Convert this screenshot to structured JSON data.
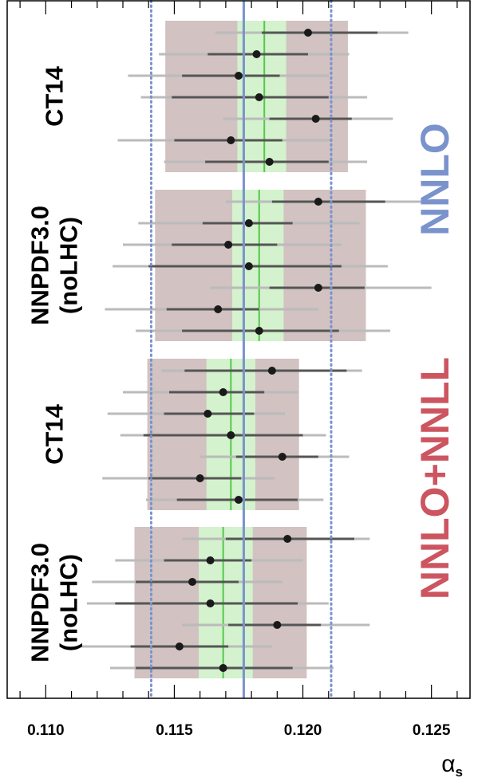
{
  "chart_data": {
    "type": "scatter",
    "orientation": "horizontal-error-bars",
    "xlim": [
      0.1085,
      0.1265
    ],
    "x_ticks": [
      {
        "value": 0.11,
        "label": "0.110"
      },
      {
        "value": 0.115,
        "label": "0.115"
      },
      {
        "value": 0.12,
        "label": "0.120"
      },
      {
        "value": 0.125,
        "label": "0.125"
      }
    ],
    "xlabel_main": "α",
    "xlabel_sub": "s",
    "grid": false,
    "reference": {
      "central": 0.1177,
      "low": 0.1141,
      "high": 0.1211,
      "color": "#7a93cc"
    },
    "order_labels": [
      {
        "text": "NNLO",
        "color": "#7a93cc"
      },
      {
        "text": "NNLO+NNLL",
        "color": "#cc5560"
      }
    ],
    "colors": {
      "band_outer": "#d2c2c2",
      "band_inner": "#d3f2cd",
      "average_line": "#55c84c",
      "point": "#1a1a1a",
      "err_stat": "#555555",
      "err_tot": "#bbbbbb"
    },
    "groups": [
      {
        "label_lines": [
          "CT14"
        ],
        "band_outer": [
          0.11465,
          0.12175
        ],
        "band_inner": [
          0.11745,
          0.11935
        ],
        "average": 0.1185,
        "points": [
          {
            "x": 0.1202,
            "stat": [
              0.1184,
              0.1229
            ],
            "tot": [
              0.1166,
              0.1241
            ]
          },
          {
            "x": 0.1182,
            "stat": [
              0.1163,
              0.1202
            ],
            "tot": [
              0.1144,
              0.1218
            ]
          },
          {
            "x": 0.1175,
            "stat": [
              0.1153,
              0.1191
            ],
            "tot": [
              0.1132,
              0.121
            ]
          },
          {
            "x": 0.1183,
            "stat": [
              0.1149,
              0.121
            ],
            "tot": [
              0.1137,
              0.1225
            ]
          },
          {
            "x": 0.1205,
            "stat": [
              0.1187,
              0.1219
            ],
            "tot": [
              0.1169,
              0.1235
            ]
          },
          {
            "x": 0.1172,
            "stat": [
              0.115,
              0.1192
            ],
            "tot": [
              0.1128,
              0.1211
            ]
          },
          {
            "x": 0.1187,
            "stat": [
              0.1162,
              0.121
            ],
            "tot": [
              0.1146,
              0.1225
            ]
          }
        ]
      },
      {
        "label_lines": [
          "NNPDF3.0",
          "(noLHC)"
        ],
        "band_outer": [
          0.11425,
          0.12245
        ],
        "band_inner": [
          0.11725,
          0.11925
        ],
        "average": 0.1183,
        "points": [
          {
            "x": 0.1206,
            "stat": [
              0.1188,
              0.1232
            ],
            "tot": [
              0.117,
              0.125
            ]
          },
          {
            "x": 0.1179,
            "stat": [
              0.1161,
              0.1196
            ],
            "tot": [
              0.1136,
              0.1222
            ]
          },
          {
            "x": 0.1171,
            "stat": [
              0.1149,
              0.119
            ],
            "tot": [
              0.113,
              0.1215
            ]
          },
          {
            "x": 0.1179,
            "stat": [
              0.114,
              0.1215
            ],
            "tot": [
              0.1126,
              0.1233
            ]
          },
          {
            "x": 0.1206,
            "stat": [
              0.1187,
              0.1224
            ],
            "tot": [
              0.1164,
              0.125
            ]
          },
          {
            "x": 0.1167,
            "stat": [
              0.1147,
              0.1183
            ],
            "tot": [
              0.1123,
              0.1206
            ]
          },
          {
            "x": 0.1183,
            "stat": [
              0.1153,
              0.1214
            ],
            "tot": [
              0.1135,
              0.1234
            ]
          }
        ]
      },
      {
        "label_lines": [
          "CT14"
        ],
        "band_outer": [
          0.11395,
          0.11985
        ],
        "band_inner": [
          0.11625,
          0.11815
        ],
        "average": 0.1172,
        "points": [
          {
            "x": 0.1188,
            "stat": [
              0.1154,
              0.1217
            ],
            "tot": [
              0.1145,
              0.1223
            ]
          },
          {
            "x": 0.1169,
            "stat": [
              0.1148,
              0.1185
            ],
            "tot": [
              0.113,
              0.1198
            ]
          },
          {
            "x": 0.1163,
            "stat": [
              0.1146,
              0.1181
            ],
            "tot": [
              0.1124,
              0.1193
            ]
          },
          {
            "x": 0.1172,
            "stat": [
              0.1138,
              0.12
            ],
            "tot": [
              0.1129,
              0.1209
            ]
          },
          {
            "x": 0.1192,
            "stat": [
              0.1174,
              0.1206
            ],
            "tot": [
              0.116,
              0.1218
            ]
          },
          {
            "x": 0.116,
            "stat": [
              0.114,
              0.1176
            ],
            "tot": [
              0.1122,
              0.1189
            ]
          },
          {
            "x": 0.1175,
            "stat": [
              0.1151,
              0.1198
            ],
            "tot": [
              0.1139,
              0.1208
            ]
          }
        ]
      },
      {
        "label_lines": [
          "NNPDF3.0",
          "(noLHC)"
        ],
        "band_outer": [
          0.11345,
          0.12015
        ],
        "band_inner": [
          0.11595,
          0.11805
        ],
        "average": 0.1169,
        "points": [
          {
            "x": 0.1194,
            "stat": [
              0.117,
              0.122
            ],
            "tot": [
              0.1153,
              0.1226
            ]
          },
          {
            "x": 0.1164,
            "stat": [
              0.1146,
              0.118
            ],
            "tot": [
              0.1127,
              0.12
            ]
          },
          {
            "x": 0.1157,
            "stat": [
              0.1135,
              0.1175
            ],
            "tot": [
              0.1118,
              0.1192
            ]
          },
          {
            "x": 0.1164,
            "stat": [
              0.1127,
              0.1198
            ],
            "tot": [
              0.1116,
              0.121
            ]
          },
          {
            "x": 0.119,
            "stat": [
              0.1171,
              0.1207
            ],
            "tot": [
              0.1153,
              0.1226
            ]
          },
          {
            "x": 0.1152,
            "stat": [
              0.1133,
              0.1171
            ],
            "tot": [
              0.1114,
              0.1188
            ]
          },
          {
            "x": 0.1169,
            "stat": [
              0.1135,
              0.1196
            ],
            "tot": [
              0.1125,
              0.1212
            ]
          }
        ]
      }
    ]
  }
}
